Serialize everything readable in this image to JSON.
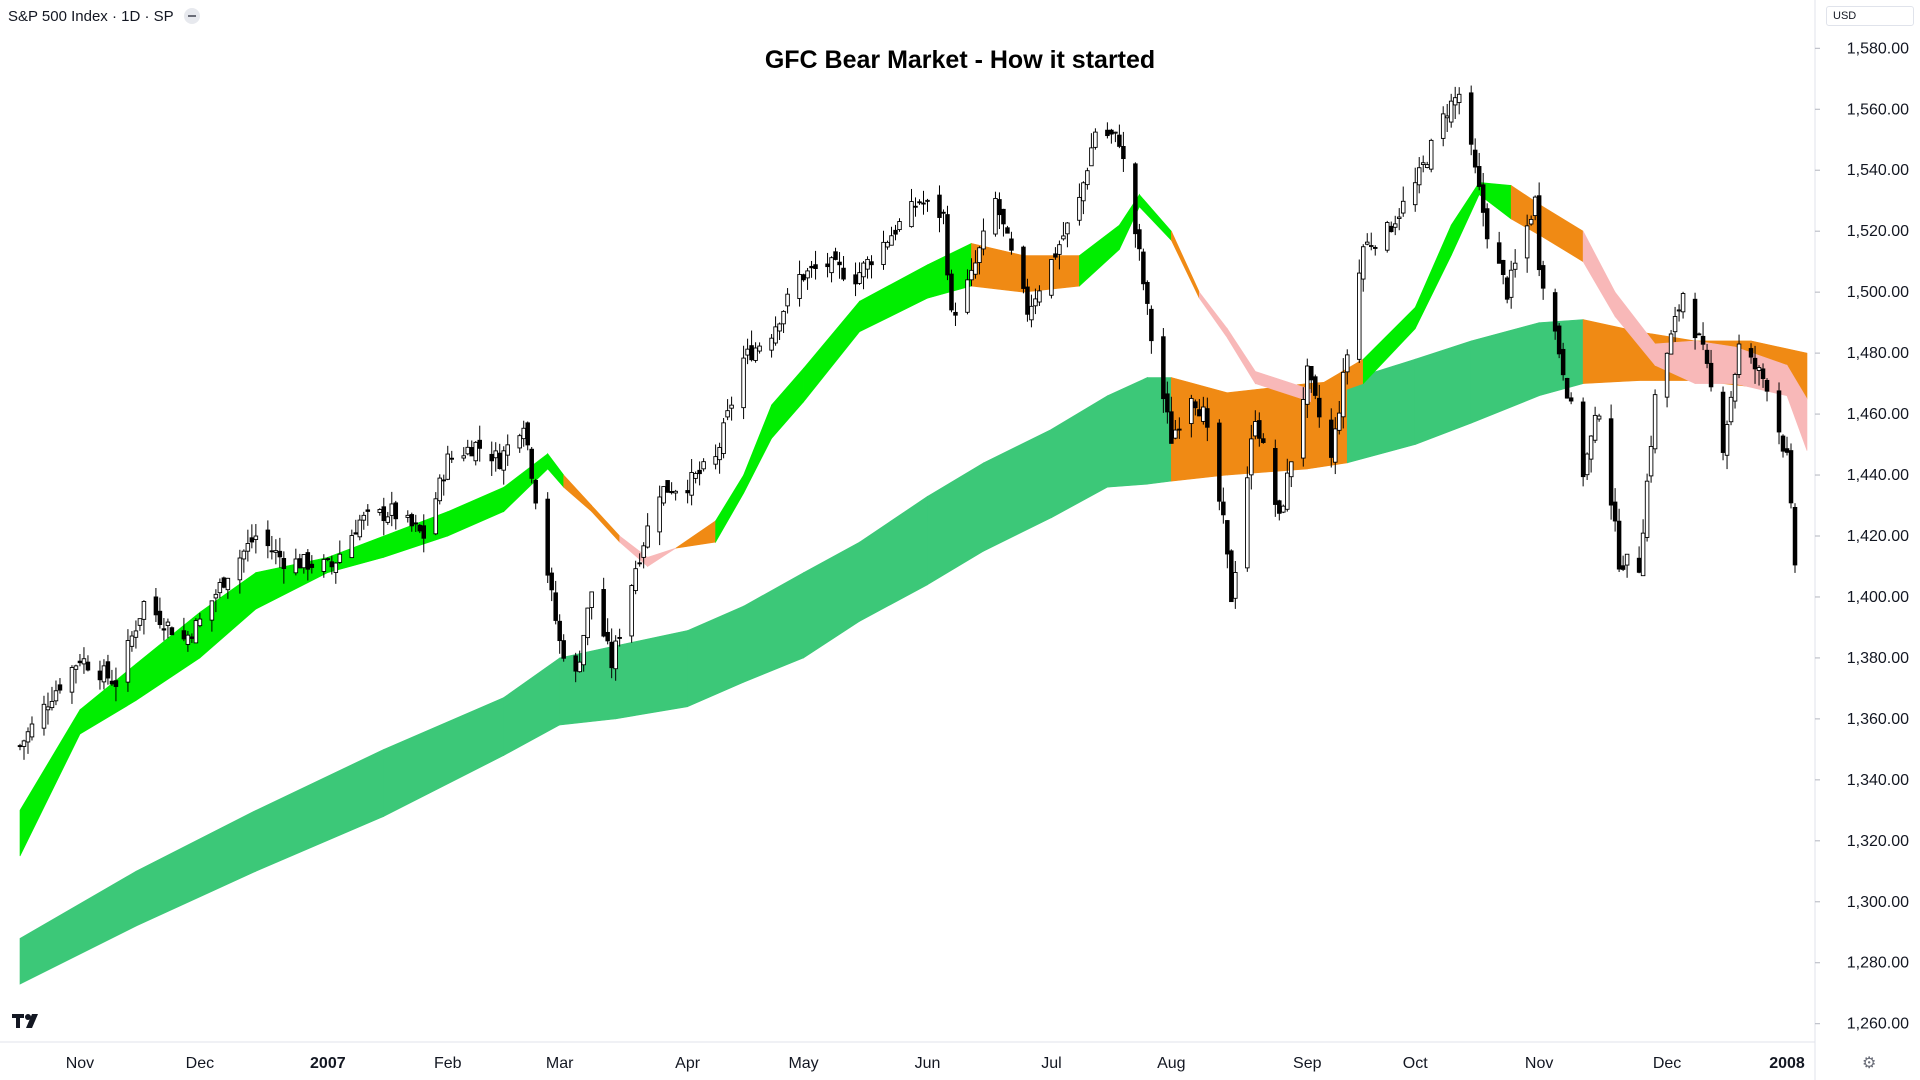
{
  "header": {
    "symbol_label": "S&P 500 Index · 1D · SP"
  },
  "currency_label": "USD",
  "icons": {
    "logo": "tradingview-logo-icon",
    "settings": "settings-gear-icon",
    "collapse": "collapse-dot-icon"
  },
  "colors": {
    "short_ribbon_bull": "#00ee00",
    "long_ribbon_bull": "#3cc878",
    "ribbon_cross": "#f08a14",
    "short_ribbon_bear": "#f8b8b8",
    "candle_up_border": "#000000",
    "candle_down": "#000000"
  },
  "chart_data": {
    "type": "candlestick",
    "title": "GFC Bear Market - How it started",
    "xlabel": "",
    "ylabel": "",
    "ylim": [
      1254,
      1586
    ],
    "y_ticks": [
      "1,260.00",
      "1,280.00",
      "1,300.00",
      "1,320.00",
      "1,340.00",
      "1,360.00",
      "1,380.00",
      "1,400.00",
      "1,420.00",
      "1,440.00",
      "1,460.00",
      "1,480.00",
      "1,500.00",
      "1,520.00",
      "1,540.00",
      "1,560.00",
      "1,580.00"
    ],
    "y_tick_values": [
      1260,
      1280,
      1300,
      1320,
      1340,
      1360,
      1380,
      1400,
      1420,
      1440,
      1460,
      1480,
      1500,
      1520,
      1540,
      1560,
      1580
    ],
    "x_ticks": [
      "Nov",
      "Dec",
      "2007",
      "Feb",
      "Mar",
      "Apr",
      "May",
      "Jun",
      "Jul",
      "Aug",
      "Sep",
      "Oct",
      "Nov",
      "Dec",
      "2008"
    ],
    "x_tick_dates": [
      "2006-11-01",
      "2006-12-01",
      "2007-01-02",
      "2007-02-01",
      "2007-03-01",
      "2007-04-02",
      "2007-05-01",
      "2007-06-01",
      "2007-07-02",
      "2007-08-01",
      "2007-09-04",
      "2007-10-01",
      "2007-11-01",
      "2007-12-03",
      "2008-01-02"
    ],
    "x_tick_bold": [
      "2007",
      "2008"
    ],
    "grid": false,
    "series": [
      {
        "kind": "price_path",
        "x": [
          "2006-10-17",
          "2006-10-25",
          "2006-11-01",
          "2006-11-10",
          "2006-11-17",
          "2006-11-27",
          "2006-12-01",
          "2006-12-08",
          "2006-12-15",
          "2006-12-22",
          "2007-01-03",
          "2007-01-10",
          "2007-01-18",
          "2007-01-26",
          "2007-02-01",
          "2007-02-08",
          "2007-02-14",
          "2007-02-20",
          "2007-02-27",
          "2007-03-01",
          "2007-03-05",
          "2007-03-09",
          "2007-03-14",
          "2007-03-20",
          "2007-03-26",
          "2007-04-02",
          "2007-04-09",
          "2007-04-16",
          "2007-04-23",
          "2007-04-30",
          "2007-05-07",
          "2007-05-14",
          "2007-05-21",
          "2007-05-30",
          "2007-06-05",
          "2007-06-07",
          "2007-06-12",
          "2007-06-18",
          "2007-06-26",
          "2007-07-02",
          "2007-07-09",
          "2007-07-13",
          "2007-07-19",
          "2007-07-24",
          "2007-07-27",
          "2007-08-01",
          "2007-08-06",
          "2007-08-09",
          "2007-08-14",
          "2007-08-16",
          "2007-08-22",
          "2007-08-28",
          "2007-09-04",
          "2007-09-10",
          "2007-09-18",
          "2007-09-24",
          "2007-10-01",
          "2007-10-09",
          "2007-10-12",
          "2007-10-19",
          "2007-10-24",
          "2007-10-31",
          "2007-11-01",
          "2007-11-07",
          "2007-11-12",
          "2007-11-16",
          "2007-11-21",
          "2007-11-26",
          "2007-11-30",
          "2007-12-07",
          "2007-12-12",
          "2007-12-17",
          "2007-12-21",
          "2007-12-28",
          "2008-01-02",
          "2008-01-04"
        ],
        "values": [
          1351,
          1368,
          1380,
          1372,
          1398,
          1386,
          1392,
          1408,
          1420,
          1412,
          1410,
          1425,
          1428,
          1420,
          1445,
          1450,
          1445,
          1458,
          1400,
          1385,
          1374,
          1402,
          1378,
          1410,
          1435,
          1437,
          1445,
          1478,
          1487,
          1505,
          1509,
          1505,
          1516,
          1530,
          1525,
          1492,
          1505,
          1530,
          1494,
          1510,
          1530,
          1553,
          1550,
          1512,
          1485,
          1452,
          1467,
          1460,
          1424,
          1400,
          1460,
          1425,
          1473,
          1445,
          1515,
          1520,
          1535,
          1560,
          1565,
          1520,
          1500,
          1530,
          1510,
          1475,
          1441,
          1462,
          1412,
          1410,
          1465,
          1500,
          1480,
          1450,
          1482,
          1470,
          1445,
          1411
        ]
      },
      {
        "kind": "ma_band",
        "name": "",
        "role": "short-term ribbon",
        "x": [
          "2006-10-17",
          "2006-11-01",
          "2006-11-15",
          "2006-12-01",
          "2006-12-15",
          "2007-01-02",
          "2007-01-16",
          "2007-02-01",
          "2007-02-15",
          "2007-02-26",
          "2007-03-02",
          "2007-03-09",
          "2007-03-16",
          "2007-03-23",
          "2007-03-30",
          "2007-04-09",
          "2007-04-16",
          "2007-04-23",
          "2007-05-01",
          "2007-05-15",
          "2007-06-01",
          "2007-06-12",
          "2007-06-25",
          "2007-07-09",
          "2007-07-19",
          "2007-07-24",
          "2007-08-01",
          "2007-08-08",
          "2007-08-15",
          "2007-08-22",
          "2007-09-05",
          "2007-09-18",
          "2007-10-01",
          "2007-10-10",
          "2007-10-17",
          "2007-10-25",
          "2007-11-02",
          "2007-11-12",
          "2007-11-20",
          "2007-11-30",
          "2007-12-10",
          "2007-12-20",
          "2008-01-02",
          "2008-01-07"
        ],
        "upper": [
          1330,
          1363,
          1378,
          1395,
          1408,
          1413,
          1420,
          1428,
          1436,
          1447,
          1440,
          1430,
          1420,
          1413,
          1416,
          1425,
          1440,
          1463,
          1475,
          1497,
          1509,
          1516,
          1512,
          1512,
          1522,
          1532,
          1520,
          1500,
          1488,
          1474,
          1468,
          1478,
          1495,
          1522,
          1536,
          1535,
          1528,
          1520,
          1500,
          1483,
          1484,
          1482,
          1476,
          1465
        ],
        "lower": [
          1315,
          1355,
          1366,
          1380,
          1396,
          1408,
          1413,
          1420,
          1428,
          1442,
          1436,
          1428,
          1418,
          1410,
          1416,
          1418,
          1434,
          1452,
          1464,
          1487,
          1498,
          1502,
          1500,
          1502,
          1514,
          1528,
          1517,
          1498,
          1485,
          1470,
          1464,
          1470,
          1488,
          1512,
          1532,
          1524,
          1518,
          1510,
          1492,
          1476,
          1470,
          1470,
          1466,
          1448
        ],
        "segment_state": [
          "bull",
          "bull",
          "bull",
          "bull",
          "bull",
          "bull",
          "bull",
          "bull",
          "bull",
          "bull",
          "cross",
          "cross",
          "bear",
          "bear",
          "cross",
          "bull",
          "bull",
          "bull",
          "bull",
          "bull",
          "bull",
          "cross",
          "cross",
          "bull",
          "bull",
          "bull",
          "cross",
          "bear",
          "bear",
          "bear",
          "cross",
          "bull",
          "bull",
          "bull",
          "bull",
          "cross",
          "cross",
          "bear",
          "bear",
          "bear",
          "bear",
          "bear",
          "bear",
          "bear"
        ]
      },
      {
        "kind": "ma_band",
        "name": "",
        "role": "long-term ribbon",
        "x": [
          "2006-10-17",
          "2006-11-15",
          "2006-12-15",
          "2007-01-16",
          "2007-02-15",
          "2007-03-01",
          "2007-03-15",
          "2007-04-02",
          "2007-04-16",
          "2007-05-01",
          "2007-05-15",
          "2007-06-01",
          "2007-06-15",
          "2007-07-02",
          "2007-07-16",
          "2007-07-26",
          "2007-08-01",
          "2007-08-15",
          "2007-09-04",
          "2007-09-14",
          "2007-10-01",
          "2007-10-15",
          "2007-11-01",
          "2007-11-12",
          "2007-11-26",
          "2007-12-10",
          "2007-12-24",
          "2008-01-07"
        ],
        "upper": [
          1288,
          1310,
          1330,
          1350,
          1367,
          1380,
          1384,
          1389,
          1397,
          1408,
          1418,
          1433,
          1444,
          1455,
          1466,
          1472,
          1472,
          1467,
          1470,
          1471,
          1478,
          1484,
          1490,
          1491,
          1487,
          1484,
          1484,
          1480
        ],
        "lower": [
          1273,
          1292,
          1310,
          1328,
          1348,
          1358,
          1360,
          1364,
          1372,
          1380,
          1392,
          1404,
          1415,
          1426,
          1436,
          1437,
          1438,
          1440,
          1442,
          1444,
          1450,
          1457,
          1466,
          1470,
          1471,
          1471,
          1469,
          1465
        ],
        "segment_state": [
          "bull",
          "bull",
          "bull",
          "bull",
          "bull",
          "bull",
          "bull",
          "bull",
          "bull",
          "bull",
          "bull",
          "bull",
          "bull",
          "bull",
          "bull",
          "bull",
          "cross",
          "cross",
          "cross",
          "bull",
          "bull",
          "bull",
          "bull",
          "cross",
          "cross",
          "cross",
          "cross",
          "cross"
        ]
      }
    ]
  }
}
